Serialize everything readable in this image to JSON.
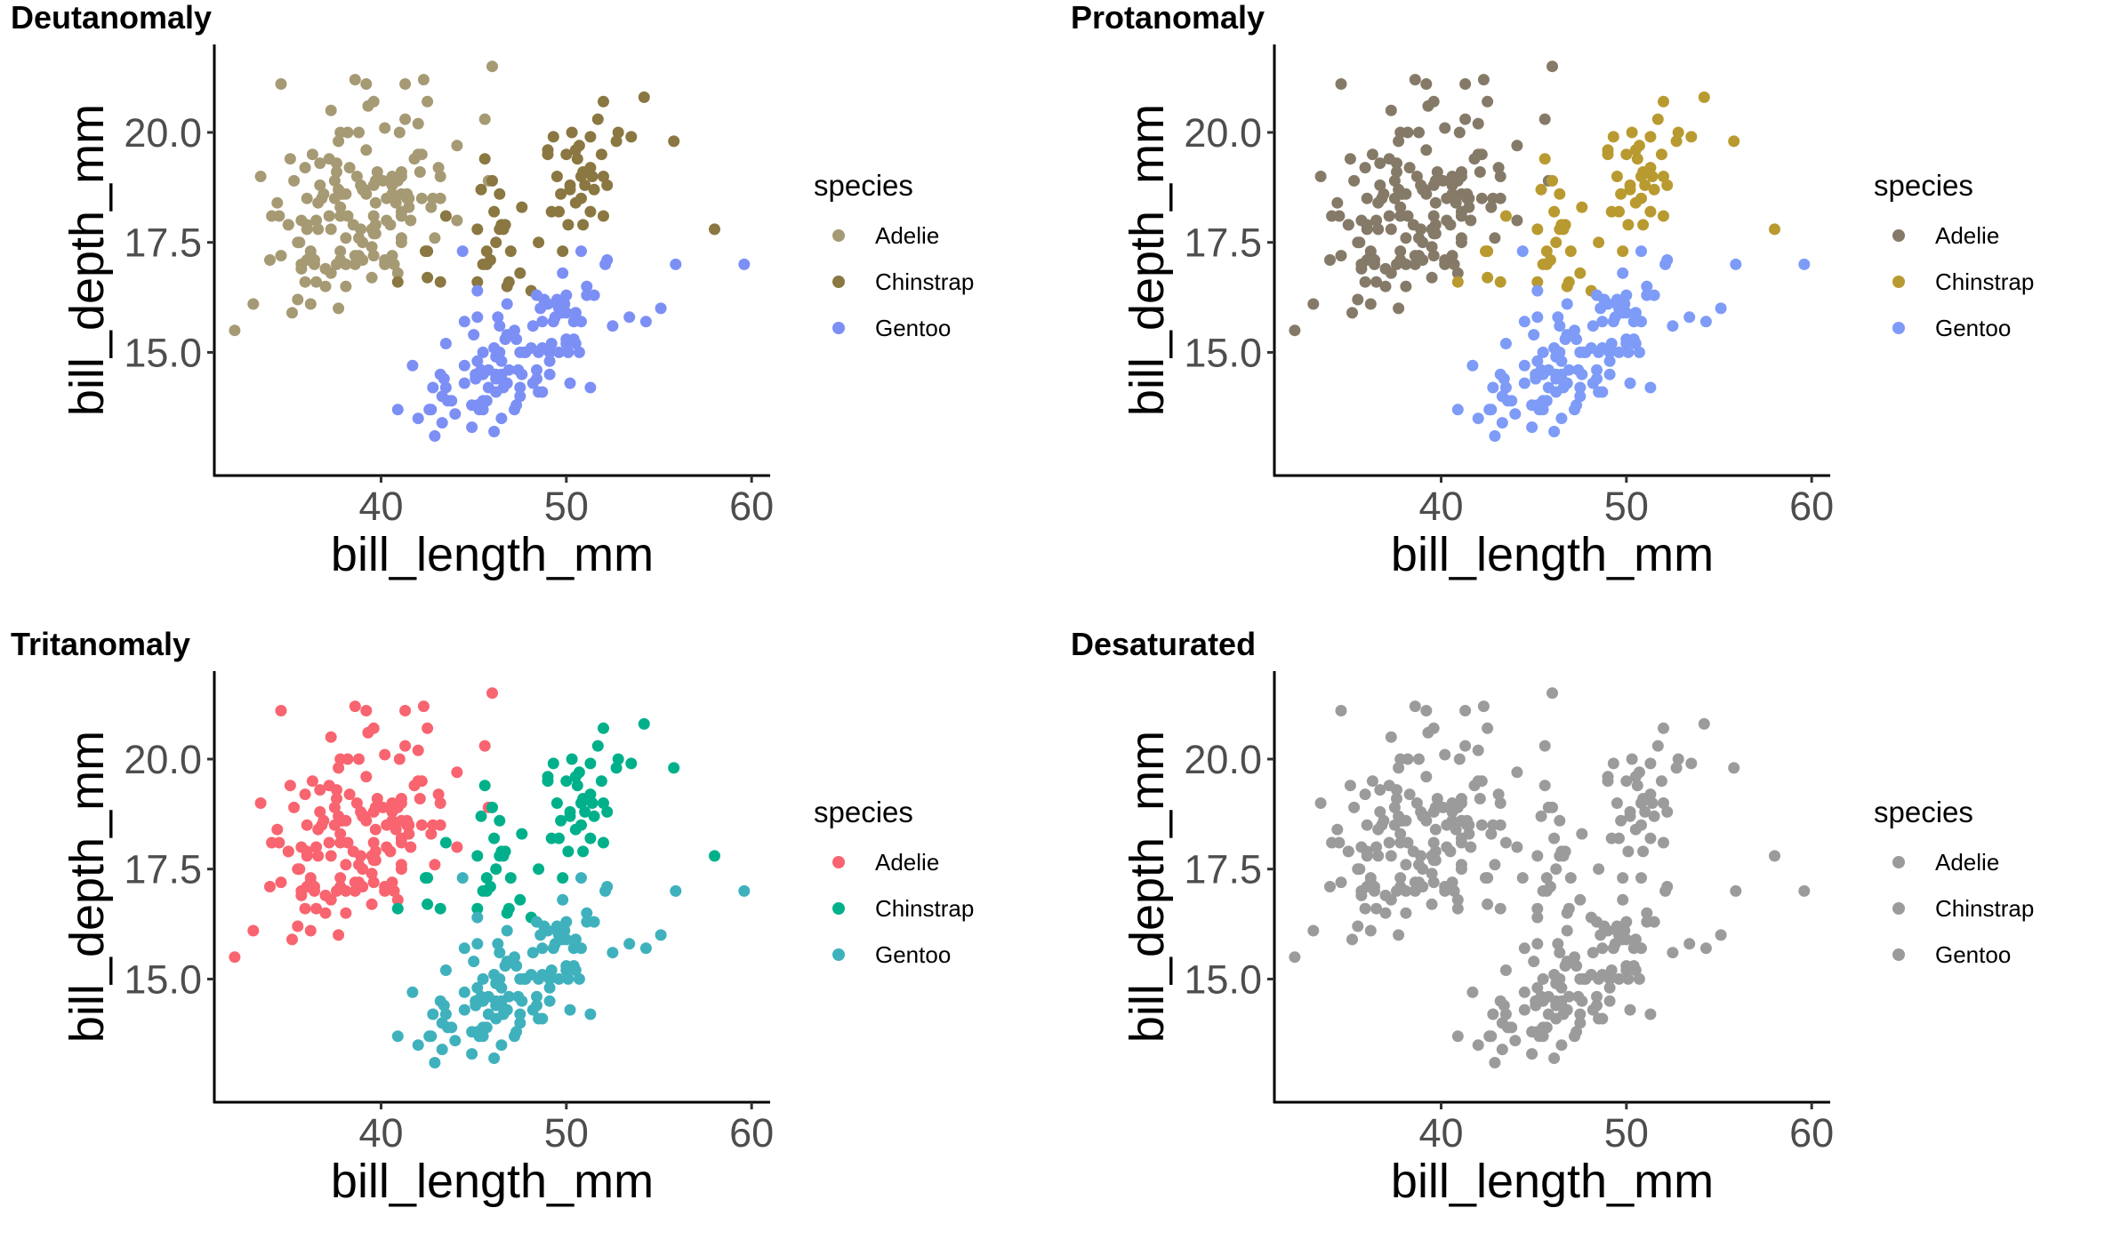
{
  "chart_data": [
    {
      "type": "scatter",
      "title": "Deutanomaly",
      "xlabel": "bill_length_mm",
      "ylabel": "bill_depth_mm",
      "xlim": [
        31,
        61
      ],
      "ylim": [
        12.2,
        22.0
      ],
      "xticks": [
        "40",
        "50",
        "60"
      ],
      "yticks": [
        "15.0",
        "17.5",
        "20.0"
      ],
      "grid": false,
      "legend_placement": "right",
      "legend_title": "species",
      "series": [
        {
          "name": "Adelie",
          "color": "#a69a74"
        },
        {
          "name": "Chinstrap",
          "color": "#8a7741"
        },
        {
          "name": "Gentoo",
          "color": "#7c8ff5"
        }
      ]
    },
    {
      "type": "scatter",
      "title": "Protanomaly",
      "xlabel": "bill_length_mm",
      "ylabel": "bill_depth_mm",
      "xlim": [
        31,
        61
      ],
      "ylim": [
        12.2,
        22.0
      ],
      "xticks": [
        "40",
        "50",
        "60"
      ],
      "yticks": [
        "15.0",
        "17.5",
        "20.0"
      ],
      "grid": false,
      "legend_placement": "right",
      "legend_title": "species",
      "series": [
        {
          "name": "Adelie",
          "color": "#857a68"
        },
        {
          "name": "Chinstrap",
          "color": "#b99a30"
        },
        {
          "name": "Gentoo",
          "color": "#7d9bf7"
        }
      ]
    },
    {
      "type": "scatter",
      "title": "Tritanomaly",
      "xlabel": "bill_length_mm",
      "ylabel": "bill_depth_mm",
      "xlim": [
        31,
        61
      ],
      "ylim": [
        12.2,
        22.0
      ],
      "xticks": [
        "40",
        "50",
        "60"
      ],
      "yticks": [
        "15.0",
        "17.5",
        "20.0"
      ],
      "grid": false,
      "legend_placement": "right",
      "legend_title": "species",
      "series": [
        {
          "name": "Adelie",
          "color": "#f8646f"
        },
        {
          "name": "Chinstrap",
          "color": "#00b08b"
        },
        {
          "name": "Gentoo",
          "color": "#3fb1bd"
        }
      ]
    },
    {
      "type": "scatter",
      "title": "Desaturated",
      "xlabel": "bill_length_mm",
      "ylabel": "bill_depth_mm",
      "xlim": [
        31,
        61
      ],
      "ylim": [
        12.2,
        22.0
      ],
      "xticks": [
        "40",
        "50",
        "60"
      ],
      "yticks": [
        "15.0",
        "17.5",
        "20.0"
      ],
      "grid": false,
      "legend_placement": "right",
      "legend_title": "species",
      "series": [
        {
          "name": "Adelie",
          "color": "#9b9b9b"
        },
        {
          "name": "Chinstrap",
          "color": "#9b9b9b"
        },
        {
          "name": "Gentoo",
          "color": "#9b9b9b"
        }
      ]
    }
  ],
  "points": {
    "Adelie": [
      [
        39.1,
        18.7
      ],
      [
        39.5,
        17.4
      ],
      [
        40.3,
        18
      ],
      [
        36.7,
        19.3
      ],
      [
        39.3,
        20.6
      ],
      [
        38.9,
        17.8
      ],
      [
        39.2,
        19.6
      ],
      [
        34.1,
        18.1
      ],
      [
        42,
        20.2
      ],
      [
        37.8,
        17.1
      ],
      [
        37.8,
        17.3
      ],
      [
        41.1,
        17.6
      ],
      [
        38.6,
        21.2
      ],
      [
        34.6,
        21.1
      ],
      [
        36.6,
        17.8
      ],
      [
        38.7,
        19
      ],
      [
        42.5,
        20.7
      ],
      [
        34.4,
        18.4
      ],
      [
        46,
        21.5
      ],
      [
        37.8,
        18.3
      ],
      [
        37.7,
        18.7
      ],
      [
        35.9,
        19.2
      ],
      [
        38.2,
        18.1
      ],
      [
        38.8,
        17.2
      ],
      [
        35.3,
        18.9
      ],
      [
        40.6,
        18.6
      ],
      [
        40.5,
        17.9
      ],
      [
        37.9,
        18.6
      ],
      [
        40.5,
        18.9
      ],
      [
        39.5,
        16.7
      ],
      [
        37.2,
        18.1
      ],
      [
        39.5,
        17.8
      ],
      [
        40.9,
        18.9
      ],
      [
        36.4,
        17
      ],
      [
        39.2,
        21.1
      ],
      [
        38.8,
        20
      ],
      [
        42.2,
        18.5
      ],
      [
        37.6,
        19.3
      ],
      [
        39.8,
        19.1
      ],
      [
        36.5,
        18
      ],
      [
        40.8,
        18.4
      ],
      [
        36,
        18.5
      ],
      [
        44.1,
        19.7
      ],
      [
        37,
        16.9
      ],
      [
        39.6,
        18.8
      ],
      [
        41.1,
        19
      ],
      [
        37.5,
        18.9
      ],
      [
        36,
        17.9
      ],
      [
        42.3,
        21.2
      ],
      [
        39.6,
        17.7
      ],
      [
        40.1,
        18.9
      ],
      [
        35,
        17.9
      ],
      [
        42,
        19.5
      ],
      [
        34.5,
        18.1
      ],
      [
        41.4,
        18.6
      ],
      [
        39,
        17.5
      ],
      [
        40.6,
        18.8
      ],
      [
        36.5,
        16.6
      ],
      [
        37.6,
        19.1
      ],
      [
        35.7,
        16.9
      ],
      [
        41.3,
        21.1
      ],
      [
        37.6,
        17
      ],
      [
        41.1,
        18.2
      ],
      [
        36.4,
        17.1
      ],
      [
        41.6,
        18
      ],
      [
        35.5,
        16.2
      ],
      [
        41.1,
        19.1
      ],
      [
        35.9,
        16.6
      ],
      [
        41.8,
        19.4
      ],
      [
        33.5,
        19
      ],
      [
        39.7,
        18.4
      ],
      [
        39.6,
        17.2
      ],
      [
        45.8,
        18.9
      ],
      [
        35.5,
        17.5
      ],
      [
        42.8,
        18.5
      ],
      [
        40.9,
        16.8
      ],
      [
        37.2,
        19.4
      ],
      [
        36.2,
        16.1
      ],
      [
        42.1,
        19.1
      ],
      [
        34.6,
        17.2
      ],
      [
        42.9,
        17.6
      ],
      [
        36.7,
        18.8
      ],
      [
        35.1,
        19.4
      ],
      [
        37.3,
        17.8
      ],
      [
        41.3,
        20.3
      ],
      [
        36.3,
        19.5
      ],
      [
        36.9,
        18.6
      ],
      [
        38.3,
        19.2
      ],
      [
        38.9,
        18.8
      ],
      [
        35.7,
        18
      ],
      [
        41.1,
        18.1
      ],
      [
        34,
        17.1
      ],
      [
        39.6,
        18.1
      ],
      [
        36.2,
        17.3
      ],
      [
        40.8,
        18.9
      ],
      [
        38.1,
        18.6
      ],
      [
        40.3,
        18.5
      ],
      [
        33.1,
        16.1
      ],
      [
        43.2,
        18.5
      ],
      [
        35,
        17.9
      ],
      [
        41,
        20
      ],
      [
        37.7,
        16
      ],
      [
        37.8,
        20
      ],
      [
        37.9,
        18.6
      ],
      [
        39.7,
        18.9
      ],
      [
        38.6,
        17.2
      ],
      [
        38.2,
        20
      ],
      [
        38.1,
        17
      ],
      [
        43.2,
        19
      ],
      [
        38.1,
        16.5
      ],
      [
        45.6,
        20.3
      ],
      [
        39.7,
        17.7
      ],
      [
        42.2,
        19.5
      ],
      [
        39.6,
        20.7
      ],
      [
        42.7,
        18.3
      ],
      [
        38.6,
        17
      ],
      [
        37.3,
        20.5
      ],
      [
        35.7,
        17
      ],
      [
        41.1,
        18.6
      ],
      [
        36.2,
        17.2
      ],
      [
        37.7,
        19.8
      ],
      [
        40.2,
        17
      ],
      [
        41.4,
        18.5
      ],
      [
        35.2,
        15.9
      ],
      [
        40.6,
        19
      ],
      [
        38.8,
        17.6
      ],
      [
        41.5,
        18.3
      ],
      [
        39,
        17.1
      ],
      [
        44.1,
        18
      ],
      [
        38.5,
        17.9
      ],
      [
        43.1,
        19.2
      ],
      [
        36.8,
        18.5
      ],
      [
        37.5,
        18.5
      ],
      [
        38.1,
        17.6
      ],
      [
        41.1,
        17.5
      ],
      [
        35.6,
        17.5
      ],
      [
        40.2,
        20.1
      ],
      [
        37,
        16.5
      ],
      [
        39.7,
        17.9
      ],
      [
        40.2,
        17.1
      ],
      [
        40.6,
        17.2
      ],
      [
        32.1,
        15.5
      ],
      [
        40.7,
        17
      ],
      [
        37.3,
        16.8
      ],
      [
        39,
        18.7
      ],
      [
        39.2,
        18.6
      ],
      [
        36.6,
        18.4
      ],
      [
        36,
        17.8
      ],
      [
        37.8,
        18.1
      ],
      [
        36,
        17.1
      ],
      [
        41.5,
        18.5
      ]
    ],
    "Chinstrap": [
      [
        46.5,
        17.9
      ],
      [
        50,
        19.5
      ],
      [
        51.3,
        19.2
      ],
      [
        45.4,
        18.7
      ],
      [
        52.7,
        19.8
      ],
      [
        45.2,
        17.8
      ],
      [
        46.1,
        18.2
      ],
      [
        51.3,
        18.2
      ],
      [
        46,
        18.9
      ],
      [
        51.3,
        19.9
      ],
      [
        46.6,
        17.8
      ],
      [
        51.7,
        20.3
      ],
      [
        47,
        17.3
      ],
      [
        52,
        18.1
      ],
      [
        45.9,
        17.1
      ],
      [
        50.5,
        19.6
      ],
      [
        50.3,
        20
      ],
      [
        58,
        17.8
      ],
      [
        46.4,
        18.6
      ],
      [
        49.2,
        18.2
      ],
      [
        42.4,
        17.3
      ],
      [
        48.5,
        17.5
      ],
      [
        43.2,
        16.6
      ],
      [
        50.6,
        19.4
      ],
      [
        46.7,
        17.9
      ],
      [
        52,
        19
      ],
      [
        50.5,
        18.4
      ],
      [
        49.5,
        19
      ],
      [
        46.4,
        17.8
      ],
      [
        52.8,
        20
      ],
      [
        40.9,
        16.6
      ],
      [
        54.2,
        20.8
      ],
      [
        42.5,
        16.7
      ],
      [
        51,
        18.8
      ],
      [
        49.7,
        18.6
      ],
      [
        47.5,
        16.8
      ],
      [
        47.6,
        18.3
      ],
      [
        52,
        20.7
      ],
      [
        46.9,
        16.6
      ],
      [
        53.5,
        19.9
      ],
      [
        49,
        19.5
      ],
      [
        46.2,
        17.5
      ],
      [
        50.9,
        19.1
      ],
      [
        45.5,
        17
      ],
      [
        50.9,
        17.9
      ],
      [
        50.8,
        18.5
      ],
      [
        50.1,
        17.9
      ],
      [
        49,
        19.6
      ],
      [
        51.5,
        18.7
      ],
      [
        49.8,
        17.3
      ],
      [
        48.1,
        16.4
      ],
      [
        51.4,
        19
      ],
      [
        45.7,
        17.3
      ],
      [
        50.7,
        19.7
      ],
      [
        42.5,
        17.3
      ],
      [
        52.2,
        18.8
      ],
      [
        45.2,
        16.6
      ],
      [
        49.3,
        19.9
      ],
      [
        50.2,
        18.8
      ],
      [
        45.6,
        19.4
      ],
      [
        51.9,
        19.5
      ],
      [
        46.8,
        16.5
      ],
      [
        45.7,
        17
      ],
      [
        55.8,
        19.8
      ],
      [
        43.5,
        18.1
      ],
      [
        49.6,
        18.2
      ],
      [
        50.8,
        19
      ],
      [
        50.2,
        18.7
      ]
    ],
    "Gentoo": [
      [
        46.1,
        13.2
      ],
      [
        50,
        16.3
      ],
      [
        48.7,
        14.1
      ],
      [
        50,
        15.2
      ],
      [
        47.6,
        14.5
      ],
      [
        46.5,
        13.5
      ],
      [
        45.4,
        14.6
      ],
      [
        46.7,
        15.3
      ],
      [
        43.3,
        13.4
      ],
      [
        46.8,
        15.4
      ],
      [
        40.9,
        13.7
      ],
      [
        49,
        16.1
      ],
      [
        45.5,
        13.7
      ],
      [
        48.4,
        14.6
      ],
      [
        45.8,
        14.6
      ],
      [
        49.3,
        15.7
      ],
      [
        42,
        13.5
      ],
      [
        49.2,
        15.2
      ],
      [
        46.2,
        14.5
      ],
      [
        48.7,
        15.1
      ],
      [
        50.2,
        14.3
      ],
      [
        45.1,
        14.5
      ],
      [
        46.5,
        14.5
      ],
      [
        46.3,
        15.8
      ],
      [
        42.9,
        13.1
      ],
      [
        46.1,
        15.1
      ],
      [
        44.5,
        14.3
      ],
      [
        47.8,
        15
      ],
      [
        48.2,
        14.3
      ],
      [
        50,
        15.3
      ],
      [
        47.3,
        15.3
      ],
      [
        42.8,
        14.2
      ],
      [
        45.1,
        14.5
      ],
      [
        59.6,
        17
      ],
      [
        49.1,
        14.8
      ],
      [
        48.4,
        16.3
      ],
      [
        42.6,
        13.7
      ],
      [
        44.4,
        17.3
      ],
      [
        44,
        13.6
      ],
      [
        48.7,
        15.7
      ],
      [
        42.7,
        13.7
      ],
      [
        49.6,
        16
      ],
      [
        45.3,
        13.7
      ],
      [
        49.6,
        15
      ],
      [
        50.5,
        15.9
      ],
      [
        43.6,
        13.9
      ],
      [
        45.5,
        13.9
      ],
      [
        50.5,
        15.9
      ],
      [
        44.9,
        13.3
      ],
      [
        45.2,
        15.8
      ],
      [
        46.6,
        14.2
      ],
      [
        48.5,
        14.1
      ],
      [
        45.1,
        14.4
      ],
      [
        50.1,
        15
      ],
      [
        46.5,
        14.4
      ],
      [
        45,
        15.4
      ],
      [
        43.8,
        13.9
      ],
      [
        45.5,
        15
      ],
      [
        43.2,
        14.5
      ],
      [
        50.4,
        15.3
      ],
      [
        45.3,
        13.8
      ],
      [
        46.2,
        14.9
      ],
      [
        45.7,
        13.9
      ],
      [
        54.3,
        15.7
      ],
      [
        45.8,
        14.2
      ],
      [
        49.8,
        16.8
      ],
      [
        46.2,
        14.4
      ],
      [
        49.5,
        16.2
      ],
      [
        43.5,
        14.2
      ],
      [
        50.7,
        15
      ],
      [
        47.7,
        15
      ],
      [
        46.4,
        15.6
      ],
      [
        48.2,
        15.6
      ],
      [
        46.5,
        14.8
      ],
      [
        46.4,
        15
      ],
      [
        48.6,
        16
      ],
      [
        47.5,
        14.2
      ],
      [
        51.1,
        16.3
      ],
      [
        45.2,
        13.8
      ],
      [
        45.2,
        16.4
      ],
      [
        49.1,
        14.5
      ],
      [
        52.5,
        15.6
      ],
      [
        47.4,
        14.6
      ],
      [
        50,
        15.9
      ],
      [
        44.9,
        13.8
      ],
      [
        50.8,
        17.3
      ],
      [
        43.4,
        14.4
      ],
      [
        51.3,
        14.2
      ],
      [
        47.5,
        14
      ],
      [
        52.1,
        17
      ],
      [
        47.5,
        15
      ],
      [
        52.2,
        17.1
      ],
      [
        45.5,
        14.5
      ],
      [
        49.5,
        16.1
      ],
      [
        44.5,
        14.7
      ],
      [
        50.8,
        15.7
      ],
      [
        49.4,
        15.8
      ],
      [
        46.9,
        14.6
      ],
      [
        48.4,
        14.4
      ],
      [
        51.1,
        16.5
      ],
      [
        48.5,
        15
      ],
      [
        55.9,
        17
      ],
      [
        47.2,
        15.5
      ],
      [
        49.1,
        15
      ],
      [
        47.3,
        13.8
      ],
      [
        46.8,
        16.1
      ],
      [
        41.7,
        14.7
      ],
      [
        53.4,
        15.8
      ],
      [
        43.3,
        14
      ],
      [
        48.1,
        15.1
      ],
      [
        50.5,
        15.2
      ],
      [
        49.8,
        15.9
      ],
      [
        43.5,
        15.2
      ],
      [
        51.5,
        16.3
      ],
      [
        46.2,
        14.1
      ],
      [
        55.1,
        16
      ],
      [
        44.5,
        15.7
      ],
      [
        48.8,
        16.2
      ],
      [
        47.2,
        13.7
      ],
      [
        46.8,
        14.3
      ],
      [
        50.4,
        15.7
      ],
      [
        45.2,
        14.8
      ],
      [
        49.9,
        16.1
      ]
    ]
  },
  "series_order": [
    "Adelie",
    "Chinstrap",
    "Gentoo"
  ]
}
